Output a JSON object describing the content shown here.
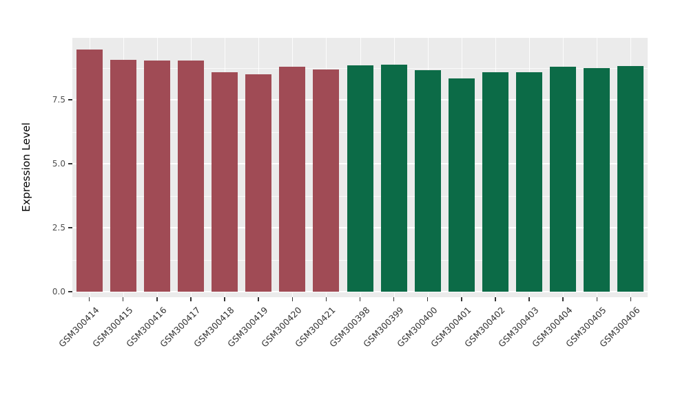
{
  "figure": {
    "background": "#FFFFFF",
    "panel_background": "#EBEBEB",
    "grid_color": "#FFFFFF",
    "tick_color": "#333333",
    "axis_text_color": "#4D4D4D"
  },
  "chart_data": {
    "type": "bar",
    "title": "",
    "xlabel": "",
    "ylabel": "Expression Level",
    "ylim": [
      0,
      9.9
    ],
    "grid": true,
    "legend": "none",
    "ytick_labels": [
      "0.0",
      "2.5",
      "5.0",
      "7.5"
    ],
    "ytick_values": [
      0,
      2.5,
      5,
      7.5
    ],
    "minor_ytick_values": [
      1.25,
      3.75,
      6.25,
      8.75
    ],
    "categories": [
      "GSM300414",
      "GSM300415",
      "GSM300416",
      "GSM300417",
      "GSM300418",
      "GSM300419",
      "GSM300420",
      "GSM300421",
      "GSM300398",
      "GSM300399",
      "GSM300400",
      "GSM300401",
      "GSM300402",
      "GSM300403",
      "GSM300404",
      "GSM300405",
      "GSM300406"
    ],
    "values": [
      9.45,
      9.05,
      9.02,
      9.04,
      8.58,
      8.5,
      8.78,
      8.68,
      8.85,
      8.88,
      8.65,
      8.32,
      8.57,
      8.57,
      8.8,
      8.73,
      8.83
    ],
    "colors": [
      "#A04B55",
      "#A04B55",
      "#A04B55",
      "#A04B55",
      "#A04B55",
      "#A04B55",
      "#A04B55",
      "#A04B55",
      "#0C6B47",
      "#0C6B47",
      "#0C6B47",
      "#0C6B47",
      "#0C6B47",
      "#0C6B47",
      "#0C6B47",
      "#0C6B47",
      "#0C6B47"
    ],
    "group_colors": {
      "maroon": "#A04B55",
      "green": "#0C6B47"
    }
  }
}
